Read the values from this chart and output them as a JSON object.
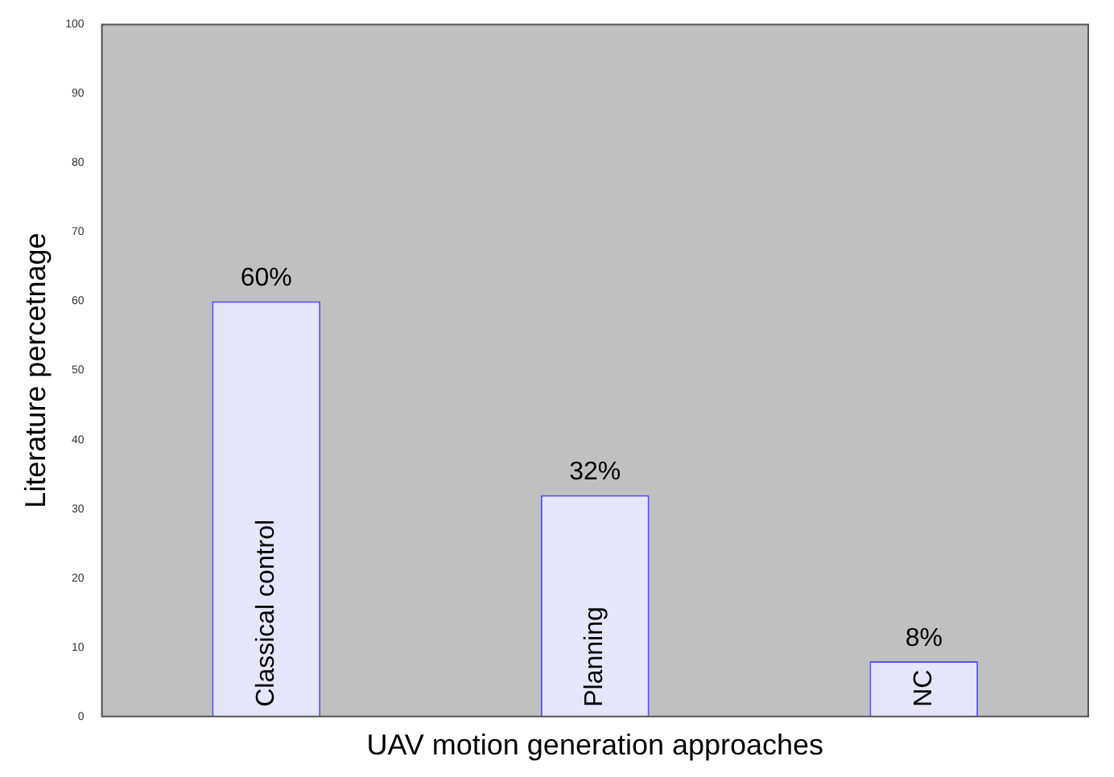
{
  "chart_data": {
    "type": "bar",
    "xlabel": "UAV motion generation approaches",
    "ylabel": "Literature percetnage",
    "categories": [
      "Classical control",
      "Planning",
      "NC"
    ],
    "values": [
      60,
      32,
      8
    ],
    "value_labels": [
      "60%",
      "32%",
      "8%"
    ],
    "color": "#e6e6fa",
    "ylim": [
      0,
      100
    ],
    "yticks": [
      0,
      10,
      20,
      30,
      40,
      50,
      60,
      70,
      80,
      90,
      100
    ],
    "grid": false,
    "legend": false
  }
}
